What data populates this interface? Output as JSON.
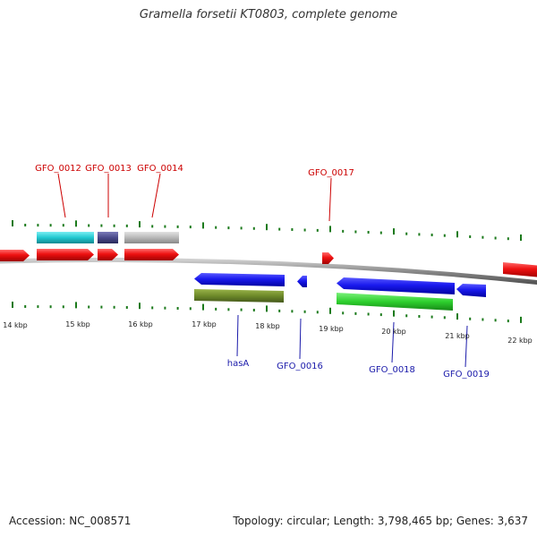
{
  "title": "Gramella forsetii KT0803, complete genome",
  "footer": {
    "accession": "Accession: NC_008571",
    "summary": "Topology: circular; Length: 3,798,465 bp; Genes: 3,637"
  },
  "colors": {
    "forward_cds": "#ee1111",
    "reverse_cds": "#1a1aee",
    "forward_label": "#cc0000",
    "reverse_label": "#1a1aaa",
    "tick": "#1c7a1c",
    "backbone": "#8a8a8a",
    "scale_text": "#222222"
  },
  "scale_labels": [
    "14 kbp",
    "15 kbp",
    "16 kbp",
    "17 kbp",
    "18 kbp",
    "19 kbp",
    "20 kbp",
    "21 kbp",
    "22 kbp"
  ],
  "forward_genes": [
    "GFO_0012",
    "GFO_0013",
    "GFO_0014",
    "GFO_0017"
  ],
  "reverse_genes": [
    "hasA",
    "GFO_0016",
    "GFO_0018",
    "GFO_0019"
  ],
  "features": [
    {
      "name": "GFO_0012-cog",
      "track": "forward-cog",
      "color": "#22c8d0"
    },
    {
      "name": "GFO_0013-cog",
      "track": "forward-cog",
      "color": "#4a4a8a"
    },
    {
      "name": "GFO_0014-cog",
      "track": "forward-cog",
      "color": "#b8b8b8"
    },
    {
      "name": "hasA-cog",
      "track": "reverse-cog",
      "color": "#6e8a2a"
    },
    {
      "name": "GFO_0018-cog",
      "track": "reverse-cog",
      "color": "#2ed02e"
    }
  ]
}
